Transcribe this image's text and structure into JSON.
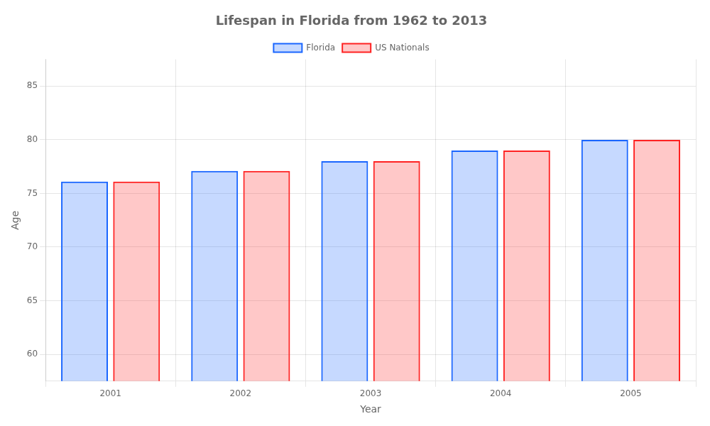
{
  "chart_data": {
    "type": "bar",
    "title": "Lifespan in Florida from 1962 to 2013",
    "xlabel": "Year",
    "ylabel": "Age",
    "categories": [
      "2001",
      "2002",
      "2003",
      "2004",
      "2005"
    ],
    "series": [
      {
        "name": "Florida",
        "color": "#1a66ff",
        "values": [
          76.1,
          77.1,
          78.0,
          79.0,
          80.0
        ]
      },
      {
        "name": "US Nationals",
        "color": "#ff2222",
        "values": [
          76.1,
          77.1,
          78.0,
          79.0,
          80.0
        ]
      }
    ],
    "ylim": [
      57.5,
      87.5
    ],
    "yticks": [
      60,
      65,
      70,
      75,
      80,
      85
    ],
    "grid": true,
    "legend": "top"
  }
}
